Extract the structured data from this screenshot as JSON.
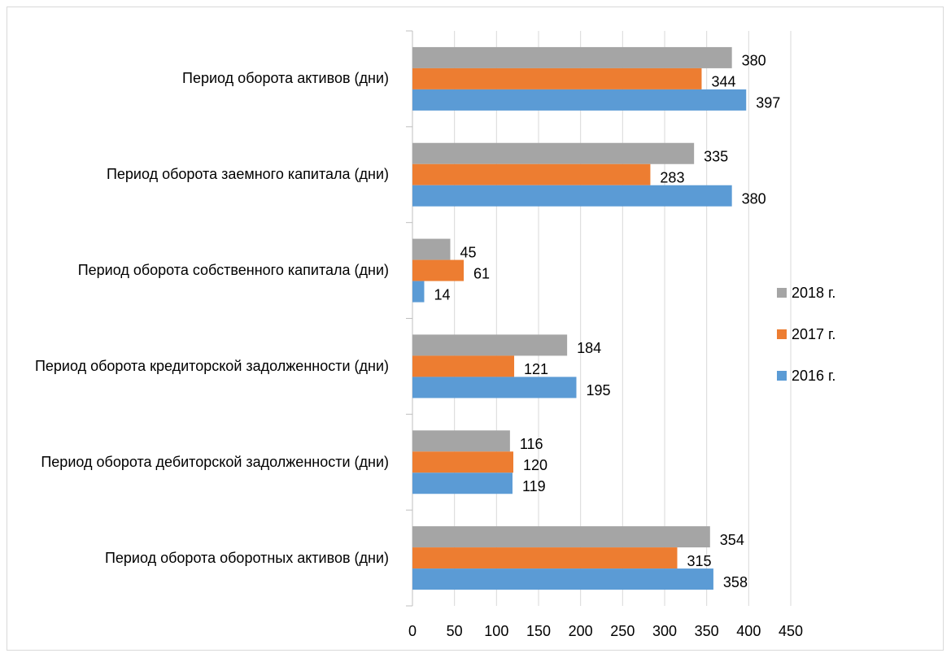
{
  "chart_data": {
    "type": "bar",
    "orientation": "horizontal",
    "categories": [
      "Период оборота активов (дни)",
      "Период оборота заемного капитала (дни)",
      "Период оборота собственного капитала (дни)",
      "Период оборота кредиторской задолженности (дни)",
      "Период оборота дебиторской задолженности (дни)",
      "Период оборота оборотных активов (дни)"
    ],
    "series": [
      {
        "name": "2018 г.",
        "color": "#a5a5a5",
        "values": [
          380,
          335,
          45,
          184,
          116,
          354
        ]
      },
      {
        "name": "2017 г.",
        "color": "#ed7d31",
        "values": [
          344,
          283,
          61,
          121,
          120,
          315
        ]
      },
      {
        "name": "2016 г.",
        "color": "#5b9bd5",
        "values": [
          397,
          380,
          14,
          195,
          119,
          358
        ]
      }
    ],
    "xlim": [
      0,
      450
    ],
    "xticks": [
      0,
      50,
      100,
      150,
      200,
      250,
      300,
      350,
      400,
      450
    ],
    "grid": true,
    "legend": "right"
  }
}
